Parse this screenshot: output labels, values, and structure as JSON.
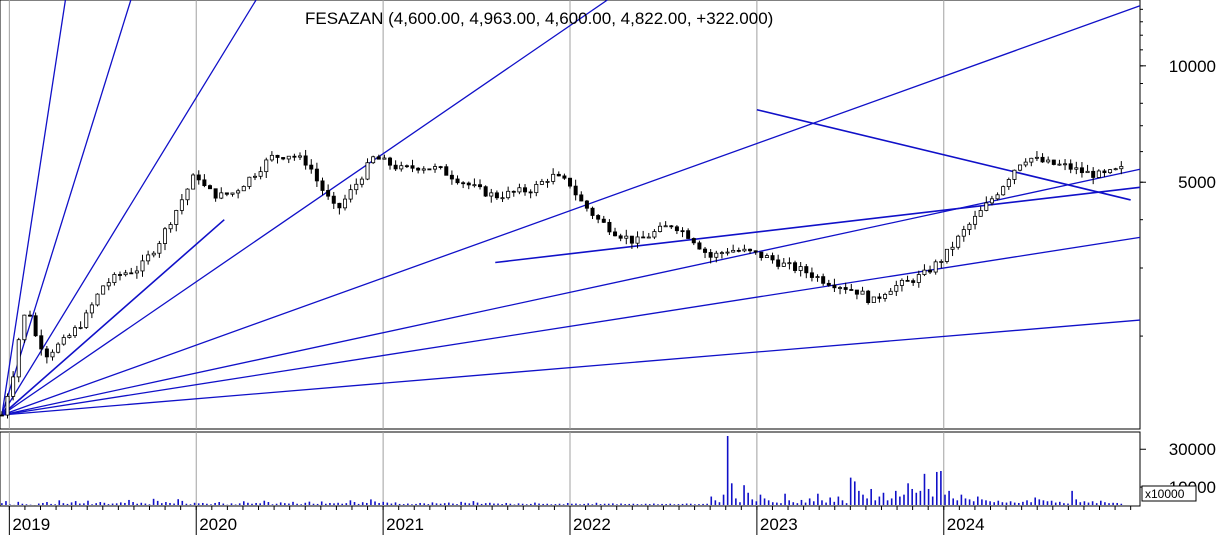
{
  "chart_data": {
    "type": "candlestick",
    "title": "FESAZAN (4,600.00, 4,963.00, 4,600.00, 4,822.00, +322.000)",
    "price_scale": "log",
    "price_range": [
      1150,
      14800
    ],
    "price_ticks": [
      {
        "value": 10000,
        "label": "10000"
      },
      {
        "value": 5000,
        "label": "5000"
      }
    ],
    "time_range": [
      2018.95,
      2025.05
    ],
    "year_ticks": [
      {
        "value": 2019.0,
        "label": "2019"
      },
      {
        "value": 2020.0,
        "label": "2020"
      },
      {
        "value": 2021.0,
        "label": "2021"
      },
      {
        "value": 2022.0,
        "label": "2022"
      },
      {
        "value": 2023.0,
        "label": "2023"
      },
      {
        "value": 2024.0,
        "label": "2024"
      }
    ],
    "grid_vertical": [
      2019.0,
      2020.0,
      2021.0,
      2022.0,
      2023.0,
      2024.0
    ],
    "price_path": [
      [
        2018.96,
        1250
      ],
      [
        2019.02,
        1600
      ],
      [
        2019.06,
        2100
      ],
      [
        2019.1,
        2400
      ],
      [
        2019.14,
        2000
      ],
      [
        2019.2,
        1800
      ],
      [
        2019.3,
        1950
      ],
      [
        2019.4,
        2200
      ],
      [
        2019.5,
        2700
      ],
      [
        2019.6,
        2900
      ],
      [
        2019.7,
        3000
      ],
      [
        2019.8,
        3500
      ],
      [
        2019.9,
        4300
      ],
      [
        2020.0,
        5300
      ],
      [
        2020.05,
        4800
      ],
      [
        2020.12,
        4600
      ],
      [
        2020.2,
        4700
      ],
      [
        2020.3,
        5200
      ],
      [
        2020.4,
        5800
      ],
      [
        2020.5,
        5900
      ],
      [
        2020.6,
        5600
      ],
      [
        2020.65,
        5000
      ],
      [
        2020.75,
        4200
      ],
      [
        2020.85,
        4900
      ],
      [
        2020.95,
        5800
      ],
      [
        2021.1,
        5400
      ],
      [
        2021.2,
        5500
      ],
      [
        2021.3,
        5400
      ],
      [
        2021.4,
        5100
      ],
      [
        2021.5,
        4800
      ],
      [
        2021.6,
        4600
      ],
      [
        2021.7,
        4700
      ],
      [
        2021.8,
        4800
      ],
      [
        2021.9,
        5200
      ],
      [
        2022.0,
        4950
      ],
      [
        2022.05,
        4500
      ],
      [
        2022.15,
        4000
      ],
      [
        2022.25,
        3700
      ],
      [
        2022.35,
        3500
      ],
      [
        2022.45,
        3700
      ],
      [
        2022.55,
        3900
      ],
      [
        2022.65,
        3600
      ],
      [
        2022.75,
        3200
      ],
      [
        2022.85,
        3350
      ],
      [
        2022.95,
        3300
      ],
      [
        2023.05,
        3200
      ],
      [
        2023.15,
        3050
      ],
      [
        2023.25,
        2950
      ],
      [
        2023.35,
        2800
      ],
      [
        2023.45,
        2700
      ],
      [
        2023.55,
        2600
      ],
      [
        2023.62,
        2450
      ],
      [
        2023.7,
        2650
      ],
      [
        2023.8,
        2750
      ],
      [
        2023.9,
        2900
      ],
      [
        2024.0,
        3200
      ],
      [
        2024.1,
        3700
      ],
      [
        2024.2,
        4200
      ],
      [
        2024.3,
        4800
      ],
      [
        2024.4,
        5600
      ],
      [
        2024.45,
        5800
      ],
      [
        2024.55,
        5600
      ],
      [
        2024.65,
        5500
      ],
      [
        2024.75,
        5300
      ],
      [
        2024.85,
        5200
      ],
      [
        2024.95,
        5400
      ]
    ],
    "volume": {
      "scale_label": "x10000",
      "range": [
        0,
        37000
      ],
      "ticks": [
        {
          "value": 30000,
          "label": "30000"
        },
        {
          "value": 10000,
          "label": "10000"
        }
      ],
      "values": [
        1500,
        2600,
        800,
        600,
        2200,
        1200,
        900,
        700,
        500,
        1300,
        1600,
        2100,
        1100,
        900,
        3000,
        1500,
        1100,
        1900,
        2600,
        1300,
        1400,
        2800,
        900,
        1500,
        2100,
        1700,
        1000,
        1300,
        1400,
        1900,
        1600,
        3200,
        2100,
        1200,
        1700,
        1300,
        900,
        3800,
        2700,
        1500,
        2100,
        1600,
        1300,
        3600,
        2700,
        1200,
        900,
        1700,
        1400,
        1600,
        1200,
        900,
        1600,
        2100,
        1300,
        700,
        1400,
        800,
        1400,
        2500,
        1700,
        1200,
        1600,
        1400,
        2800,
        2100,
        900,
        1200,
        1900,
        1500,
        1300,
        2200,
        1200,
        900,
        1700,
        2300,
        1200,
        1100,
        2400,
        1200,
        1600,
        1400,
        1700,
        1200,
        1500,
        3000,
        2100,
        1100,
        2000,
        1600,
        3500,
        2400,
        1600,
        2200,
        1800,
        1300,
        1900,
        1100,
        1000,
        1300,
        900,
        1100,
        1600,
        1400,
        1000,
        1900,
        1400,
        1200,
        1500,
        1800,
        1300,
        1000,
        2200,
        1700,
        1400,
        2600,
        1800,
        1100,
        1500,
        1700,
        1300,
        1300,
        1000,
        1600,
        1200,
        800,
        1400,
        1200,
        900,
        1100,
        1800,
        1300,
        1100,
        1200,
        900,
        1000,
        1200,
        900,
        1600,
        1200,
        1300,
        900,
        1100,
        1400,
        900,
        1700,
        1000,
        1200,
        1200,
        1400,
        900,
        1300,
        1000,
        1100,
        1200,
        1000,
        900,
        1200,
        1000,
        1300,
        900,
        1100,
        1000,
        1200,
        900,
        1000,
        1100,
        1300,
        1200,
        900,
        1000,
        1100,
        1200,
        5000,
        3000,
        2000,
        6000,
        37000,
        12000,
        4000,
        2000,
        11000,
        7000,
        3500,
        2500,
        6000,
        4000,
        3000,
        2000,
        1800,
        1500,
        6500,
        3000,
        2000,
        1500,
        3200,
        1800,
        4000,
        2500,
        6500,
        3000,
        1800,
        4500,
        2200,
        5000,
        3000,
        1500,
        15000,
        13000,
        8000,
        6000,
        4000,
        9000,
        3000,
        5000,
        7000,
        3000,
        4000,
        8000,
        5000,
        6000,
        12000,
        9000,
        7000,
        8000,
        17000,
        9000,
        5000,
        18000,
        18500,
        6000,
        8000,
        4000,
        3000,
        6000,
        4000,
        3500,
        2500,
        5000,
        3500,
        3000,
        2500,
        2000,
        2800,
        2000,
        1800,
        2500,
        1800,
        1600,
        2200,
        3000,
        2000,
        4500,
        3500,
        3000,
        2500,
        2800,
        1800,
        2200,
        1500,
        1300,
        8000,
        3500,
        2000,
        2500,
        1800,
        2500,
        1500,
        2800,
        2000,
        1500,
        1700,
        1600,
        1200
      ]
    },
    "trendlines": [
      {
        "from": [
          2018.96,
          1250
        ],
        "to": [
          2020.15,
          4000
        ],
        "kind": "support"
      },
      {
        "from": [
          2023.0,
          7700
        ],
        "to": [
          2025.0,
          4500
        ],
        "kind": "resistance"
      },
      {
        "from": [
          2021.6,
          3100
        ],
        "to": [
          2025.05,
          4850
        ],
        "kind": "support"
      }
    ],
    "fan_origin": [
      2018.96,
      1250
    ],
    "fan_rays": [
      [
        2019.3,
        14800
      ],
      [
        2019.65,
        14800
      ],
      [
        2020.32,
        14800
      ],
      [
        2022.2,
        14800
      ],
      [
        2025.05,
        14300
      ],
      [
        2025.05,
        5400
      ],
      [
        2025.05,
        3600
      ],
      [
        2025.05,
        2200
      ]
    ]
  }
}
